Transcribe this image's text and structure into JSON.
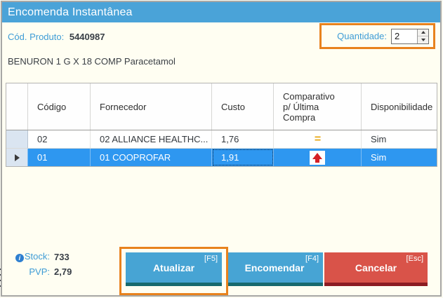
{
  "window": {
    "title": "Encomenda Instantânea"
  },
  "product": {
    "code_label": "Cód. Produto:",
    "code_value": "5440987",
    "name": "BENURON 1 G X 18 COMP Paracetamol"
  },
  "quantity": {
    "label": "Quantidade:",
    "value": "2"
  },
  "table": {
    "headers": {
      "codigo": "Código",
      "fornecedor": "Fornecedor",
      "custo": "Custo",
      "comparativo": "Comparativo p/ Última Compra",
      "disponibilidade": "Disponibilidade"
    },
    "rows": [
      {
        "codigo": "02",
        "fornecedor": "02 ALLIANCE HEALTHC...",
        "custo": "1,76",
        "comparativo": "equal-to-last-purchase",
        "disponibilidade": "Sim",
        "selected": false
      },
      {
        "codigo": "01",
        "fornecedor": "01 COOPROFAR",
        "custo": "1,91",
        "comparativo": "higher-than-last-purchase",
        "disponibilidade": "Sim",
        "selected": true
      }
    ]
  },
  "info": {
    "stock_label": "Stock:",
    "stock_value": "733",
    "pvp_label": "PVP:",
    "pvp_value": "2,79"
  },
  "buttons": {
    "atualizar": {
      "label": "Atualizar",
      "shortcut": "[F5]"
    },
    "encomendar": {
      "label": "Encomendar",
      "shortcut": "[F4]"
    },
    "cancelar": {
      "label": "Cancelar",
      "shortcut": "[Esc]"
    }
  },
  "icons": {
    "price_equal_glyph": "=",
    "info_glyph": "i"
  },
  "colors": {
    "titlebar_blue": "#4AA3D8",
    "label_blue": "#3E9CD6",
    "text_dark": "#383E46",
    "selected_row_blue": "#2E97F0",
    "highlight_orange": "#E8821D",
    "button_blue": "#47A4D4",
    "button_blue_strip": "#176A6E",
    "button_red": "#D95349",
    "button_red_strip": "#8C1C22",
    "equal_icon_gold": "#E8A712",
    "up_arrow_red": "#D51F26"
  }
}
